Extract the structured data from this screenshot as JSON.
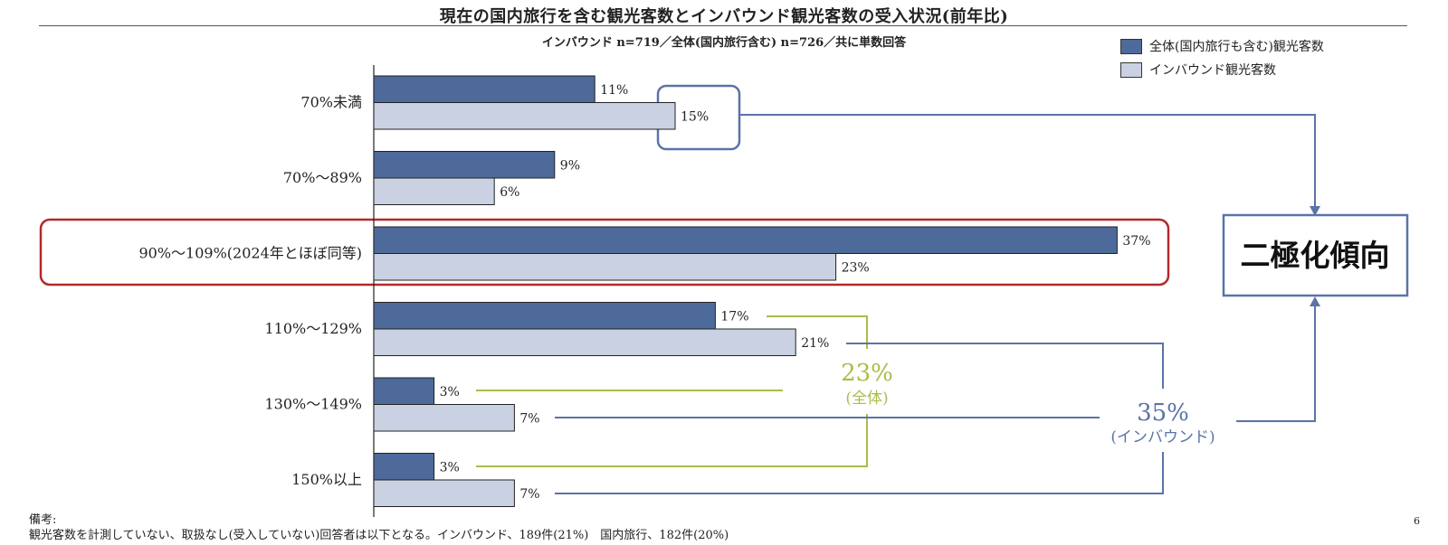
{
  "chart_data": {
    "type": "bar",
    "orientation": "horizontal",
    "title": "現在の国内旅行を含む観光客数とインバウンド観光客数の受入状況(前年比)",
    "subtitle": "インバウンド n=719／全体(国内旅行含む) n=726／共に単数回答",
    "categories": [
      "70%未満",
      "70%〜89%",
      "90%〜109%(2024年とほぼ同等)",
      "110%〜129%",
      "130%〜149%",
      "150%以上"
    ],
    "series": [
      {
        "name": "全体(国内旅行も含む)観光客数",
        "color": "#4e6a9a",
        "values": [
          11,
          9,
          37,
          17,
          3,
          3
        ],
        "labels": [
          "11%",
          "9%",
          "37%",
          "17%",
          "3%",
          "3%"
        ]
      },
      {
        "name": "インバウンド観光客数",
        "color": "#c9d1e2",
        "values": [
          15,
          6,
          23,
          21,
          7,
          7
        ],
        "labels": [
          "15%",
          "6%",
          "23%",
          "21%",
          "7%",
          "7%"
        ]
      }
    ],
    "xlim": [
      0,
      40
    ],
    "legend_position": "top-right",
    "annotations": {
      "overall_total": "23%",
      "overall_total_label": "(全体)",
      "inbound_total": "35%",
      "inbound_total_label": "(インバウンド)",
      "trend_label": "二極化傾向"
    }
  },
  "colors": {
    "overall": "#4e6a9a",
    "inbound": "#c9d1e2",
    "green": "#a9bd4a",
    "blue_line": "#5b73a8",
    "highlight": "#b22a2a"
  },
  "notes": {
    "heading": "備考:",
    "body": "観光客数を計測していない、取扱なし(受入していない)回答者は以下となる。インバウンド、189件(21%)　国内旅行、182件(20%)"
  },
  "page_number": "6"
}
